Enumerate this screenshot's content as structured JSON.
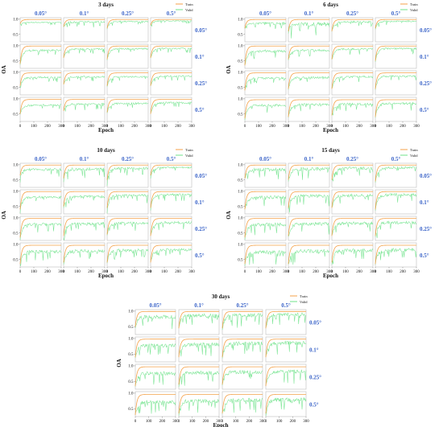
{
  "colors": {
    "train": "#f4a24a",
    "valid": "#6fe38a",
    "scale_label": "#3a63c8",
    "text": "#111111",
    "frame": "#bdbdbd"
  },
  "chart_data": {
    "type": "line",
    "xlabel": "Epoch",
    "ylabel": "OA",
    "xticks": [
      "0",
      "100",
      "200",
      "300"
    ],
    "yticks": [
      "0.5",
      "1.0"
    ],
    "xlim": [
      0,
      300
    ],
    "ylim": [
      0.25,
      1.05
    ],
    "legend": {
      "entries": [
        "Train",
        "Valid"
      ],
      "placement": "top-right"
    },
    "grid": false,
    "col_labels": [
      "0.05°",
      "0.1°",
      "0.25°",
      "0.5°"
    ],
    "row_labels": [
      "0.05°",
      "0.1°",
      "0.25°",
      "0.5°"
    ],
    "panels": [
      {
        "title": "3 days",
        "train_final": [
          [
            0.99,
            0.99,
            0.99,
            0.99
          ],
          [
            0.99,
            0.99,
            0.99,
            0.99
          ],
          [
            0.98,
            0.98,
            0.98,
            0.98
          ],
          [
            0.98,
            0.98,
            0.98,
            0.98
          ]
        ],
        "valid_final": [
          [
            0.9,
            0.92,
            0.93,
            0.95
          ],
          [
            0.86,
            0.9,
            0.91,
            0.92
          ],
          [
            0.84,
            0.86,
            0.86,
            0.88
          ],
          [
            0.8,
            0.84,
            0.86,
            0.88
          ]
        ],
        "start": [
          [
            0.85,
            0.75,
            0.7,
            0.8
          ],
          [
            0.4,
            0.6,
            0.55,
            0.6
          ],
          [
            0.55,
            0.6,
            0.55,
            0.55
          ],
          [
            0.5,
            0.6,
            0.55,
            0.5
          ]
        ],
        "noise": [
          [
            0.03,
            0.06,
            0.04,
            0.03
          ],
          [
            0.06,
            0.05,
            0.05,
            0.05
          ],
          [
            0.05,
            0.05,
            0.05,
            0.05
          ],
          [
            0.06,
            0.06,
            0.06,
            0.06
          ]
        ]
      },
      {
        "title": "6 days",
        "train_final": [
          [
            0.99,
            0.99,
            0.99,
            0.99
          ],
          [
            0.99,
            0.99,
            0.99,
            0.99
          ],
          [
            0.98,
            0.98,
            0.98,
            0.98
          ],
          [
            0.97,
            0.97,
            0.97,
            0.97
          ]
        ],
        "valid_final": [
          [
            0.88,
            0.86,
            0.92,
            0.94
          ],
          [
            0.84,
            0.86,
            0.9,
            0.92
          ],
          [
            0.82,
            0.84,
            0.86,
            0.88
          ],
          [
            0.8,
            0.82,
            0.84,
            0.86
          ]
        ],
        "start": [
          [
            0.7,
            0.6,
            0.6,
            0.7
          ],
          [
            0.35,
            0.55,
            0.55,
            0.5
          ],
          [
            0.4,
            0.45,
            0.45,
            0.45
          ],
          [
            0.35,
            0.4,
            0.45,
            0.4
          ]
        ],
        "noise": [
          [
            0.06,
            0.12,
            0.06,
            0.05
          ],
          [
            0.08,
            0.07,
            0.06,
            0.06
          ],
          [
            0.07,
            0.07,
            0.07,
            0.06
          ],
          [
            0.08,
            0.08,
            0.08,
            0.08
          ]
        ]
      },
      {
        "title": "10 days",
        "train_final": [
          [
            0.99,
            0.99,
            0.99,
            0.99
          ],
          [
            0.99,
            0.99,
            0.99,
            0.99
          ],
          [
            0.98,
            0.98,
            0.98,
            0.98
          ],
          [
            0.97,
            0.97,
            0.97,
            0.97
          ]
        ],
        "valid_final": [
          [
            0.86,
            0.88,
            0.9,
            0.92
          ],
          [
            0.82,
            0.84,
            0.88,
            0.9
          ],
          [
            0.8,
            0.82,
            0.84,
            0.86
          ],
          [
            0.78,
            0.8,
            0.82,
            0.84
          ]
        ],
        "start": [
          [
            0.65,
            0.55,
            0.5,
            0.65
          ],
          [
            0.4,
            0.5,
            0.45,
            0.45
          ],
          [
            0.35,
            0.4,
            0.45,
            0.4
          ],
          [
            0.35,
            0.4,
            0.4,
            0.4
          ]
        ],
        "noise": [
          [
            0.08,
            0.1,
            0.08,
            0.06
          ],
          [
            0.08,
            0.09,
            0.08,
            0.08
          ],
          [
            0.09,
            0.09,
            0.09,
            0.08
          ],
          [
            0.1,
            0.1,
            0.1,
            0.09
          ]
        ]
      },
      {
        "title": "15 days",
        "train_final": [
          [
            0.99,
            0.99,
            0.99,
            0.99
          ],
          [
            0.99,
            0.99,
            0.99,
            0.99
          ],
          [
            0.98,
            0.98,
            0.98,
            0.98
          ],
          [
            0.97,
            0.97,
            0.97,
            0.97
          ]
        ],
        "valid_final": [
          [
            0.86,
            0.88,
            0.9,
            0.92
          ],
          [
            0.82,
            0.86,
            0.88,
            0.9
          ],
          [
            0.8,
            0.82,
            0.84,
            0.86
          ],
          [
            0.76,
            0.8,
            0.82,
            0.84
          ]
        ],
        "start": [
          [
            0.55,
            0.5,
            0.5,
            0.45
          ],
          [
            0.4,
            0.45,
            0.45,
            0.4
          ],
          [
            0.35,
            0.4,
            0.4,
            0.4
          ],
          [
            0.35,
            0.35,
            0.4,
            0.35
          ]
        ],
        "noise": [
          [
            0.1,
            0.12,
            0.1,
            0.08
          ],
          [
            0.1,
            0.11,
            0.1,
            0.1
          ],
          [
            0.11,
            0.11,
            0.1,
            0.1
          ],
          [
            0.12,
            0.12,
            0.11,
            0.11
          ]
        ]
      },
      {
        "title": "30 days",
        "train_final": [
          [
            0.99,
            0.99,
            0.99,
            0.99
          ],
          [
            0.98,
            0.98,
            0.98,
            0.98
          ],
          [
            0.97,
            0.97,
            0.97,
            0.97
          ],
          [
            0.96,
            0.96,
            0.96,
            0.96
          ]
        ],
        "valid_final": [
          [
            0.84,
            0.88,
            0.9,
            0.92
          ],
          [
            0.8,
            0.84,
            0.86,
            0.88
          ],
          [
            0.78,
            0.8,
            0.82,
            0.84
          ],
          [
            0.74,
            0.78,
            0.8,
            0.82
          ]
        ],
        "start": [
          [
            0.5,
            0.45,
            0.45,
            0.45
          ],
          [
            0.4,
            0.4,
            0.4,
            0.4
          ],
          [
            0.35,
            0.4,
            0.4,
            0.35
          ],
          [
            0.3,
            0.35,
            0.35,
            0.35
          ]
        ],
        "noise": [
          [
            0.12,
            0.12,
            0.12,
            0.1
          ],
          [
            0.12,
            0.12,
            0.12,
            0.12
          ],
          [
            0.12,
            0.12,
            0.12,
            0.12
          ],
          [
            0.14,
            0.13,
            0.13,
            0.13
          ]
        ]
      }
    ]
  }
}
